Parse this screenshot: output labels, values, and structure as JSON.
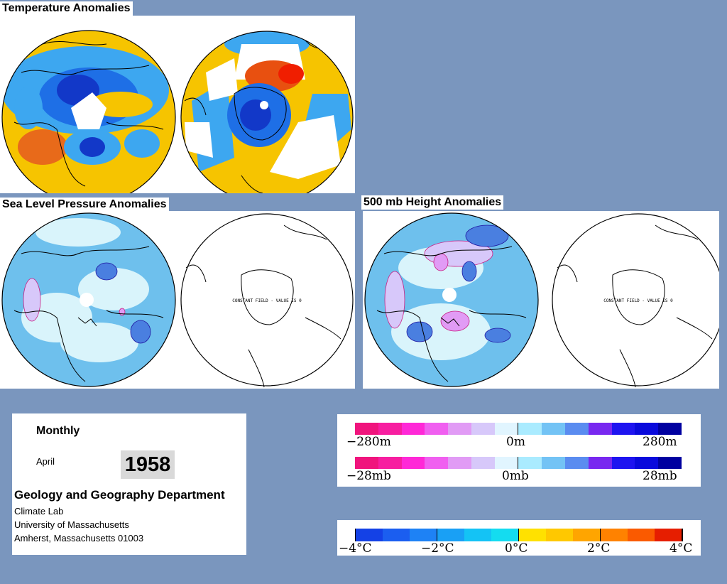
{
  "sections": {
    "temperature": {
      "title": "Temperature Anomalies"
    },
    "slp": {
      "title": "Sea Level Pressure Anomalies",
      "south_note": "CONSTANT FIELD - VALUE IS 0"
    },
    "height": {
      "title": "500 mb Height Anomalies",
      "south_note": "CONSTANT FIELD - VALUE IS 0"
    }
  },
  "info": {
    "period": "Monthly",
    "month": "April",
    "year": "1958",
    "department": "Geology and Geography Department",
    "lab": "Climate Lab",
    "university": "University of Massachusetts",
    "address": "Amherst, Massachusetts 01003"
  },
  "legend_height": {
    "colors": [
      "#f0147d",
      "#f71ea0",
      "#ff28d7",
      "#f05ff0",
      "#e19bf5",
      "#d7c8fa",
      "#e1f5ff",
      "#aaebff",
      "#73c3f5",
      "#5a8cf0",
      "#7828f0",
      "#1e14f0",
      "#0a0adc",
      "#0000a0"
    ],
    "labels": {
      "min": "−280m",
      "mid": "0m",
      "max": "280m"
    }
  },
  "legend_pressure": {
    "colors": [
      "#f0147d",
      "#f71ea0",
      "#ff28d7",
      "#f05ff0",
      "#e19bf5",
      "#d7c8fa",
      "#e1f5ff",
      "#aaebff",
      "#73c3f5",
      "#5a8cf0",
      "#7828f0",
      "#1e14f0",
      "#0a0adc",
      "#0000a0"
    ],
    "labels": {
      "min": "−28mb",
      "mid": "0mb",
      "max": "28mb"
    }
  },
  "legend_temperature": {
    "colors": [
      "#1441e6",
      "#1b5ef0",
      "#1e82f5",
      "#19a0f5",
      "#14c3f5",
      "#14dcf0",
      "#ffe100",
      "#ffc800",
      "#ffa500",
      "#ff8200",
      "#fa5a00",
      "#e61e00"
    ],
    "labels": {
      "min": "−4°C",
      "m2": "−2°C",
      "mid": "0°C",
      "p2": "2°C",
      "max": "4°C"
    }
  },
  "colors": {
    "background": "#7a96be",
    "temp_base": "#f6c400",
    "temp_cool": "#3da7f0",
    "anom_base": "#6ec0ed",
    "anom_light": "#d9f4fb"
  }
}
